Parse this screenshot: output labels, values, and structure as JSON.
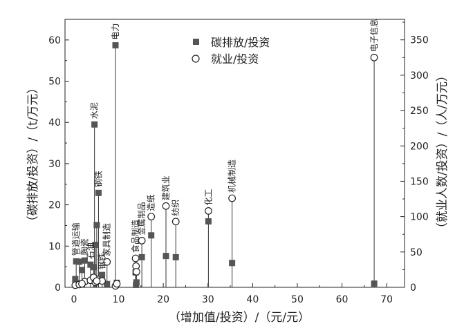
{
  "chart_data": {
    "type": "scatter",
    "xlabel": "（增加值/投资）/（元/元）",
    "ylabel_left": "（碳排放/投资）/（t/万元）",
    "ylabel_right": "（就业人数/投资）/（人/万元）",
    "xlim": [
      -2,
      74
    ],
    "ylim_left": [
      0,
      65
    ],
    "ylim_right": [
      0,
      379
    ],
    "x_ticks": [
      0,
      10,
      20,
      30,
      40,
      50,
      60,
      70
    ],
    "y_left_ticks": [
      0,
      10,
      20,
      30,
      40,
      50,
      60
    ],
    "y_right_ticks": [
      0,
      50,
      100,
      150,
      200,
      250,
      300,
      350
    ],
    "legend_position": "top-center",
    "series": [
      {
        "name": "碳排放/投资",
        "marker": "filled-square",
        "axis": "left",
        "color": "#555555"
      },
      {
        "name": "就业/投资",
        "marker": "open-circle",
        "axis": "right",
        "color": "#222222"
      }
    ],
    "sectors": [
      {
        "label": "电力",
        "x": 9.3,
        "carbon": 58.7,
        "jobs": 2
      },
      {
        "label": "水泥",
        "x": 4.6,
        "carbon": 39.5,
        "jobs": 12
      },
      {
        "label": "钢铁",
        "x": 5.5,
        "carbon": 22.9,
        "jobs": 11
      },
      {
        "label": "家具制造",
        "x": 7.4,
        "carbon": 0.8,
        "jobs": 36
      },
      {
        "label": "食品制造",
        "x": 13.8,
        "carbon": 3.6,
        "jobs": 41
      },
      {
        "label": "金属制品",
        "x": 15.2,
        "carbon": 7.3,
        "jobs": 66
      },
      {
        "label": "造纸",
        "x": 17.3,
        "carbon": 12.6,
        "jobs": 100
      },
      {
        "label": "建筑业",
        "x": 20.6,
        "carbon": 7.6,
        "jobs": 115
      },
      {
        "label": "纺织",
        "x": 22.8,
        "carbon": 7.3,
        "jobs": 93
      },
      {
        "label": "化工",
        "x": 30.1,
        "carbon": 16.0,
        "jobs": 108
      },
      {
        "label": "机械制造",
        "x": 35.4,
        "carbon": 5.9,
        "jobs": 126
      },
      {
        "label": "电子信息",
        "x": 67.2,
        "carbon": 0.9,
        "jobs": 325
      },
      {
        "label": "管道运输",
        "x": 0.5,
        "carbon": 6.3,
        "jobs": 6
      },
      {
        "label": "陶瓷",
        "x": 2.4,
        "carbon": 6.5,
        "jobs": 8
      },
      {
        "label": "石油",
        "x": 3.7,
        "carbon": 5.5,
        "jobs": 10
      },
      {
        "label": "钢铁",
        "x": 6.3,
        "carbon": 3.0,
        "jobs": 9
      },
      {
        "label": "",
        "x": 0.3,
        "carbon": 2.0,
        "jobs": 3
      },
      {
        "label": "",
        "x": 1.2,
        "carbon": 6.2,
        "jobs": 4
      },
      {
        "label": "",
        "x": 1.8,
        "carbon": 4.2,
        "jobs": 5
      },
      {
        "label": "",
        "x": 4.4,
        "carbon": 4.9,
        "jobs": 14
      },
      {
        "label": "",
        "x": 4.8,
        "carbon": 10.3,
        "jobs": 7
      },
      {
        "label": "",
        "x": 5.1,
        "carbon": 15.1,
        "jobs": 9
      },
      {
        "label": "",
        "x": 13.9,
        "carbon": 0.6,
        "jobs": 30
      },
      {
        "label": "",
        "x": 14.0,
        "carbon": 1.2,
        "jobs": 22
      },
      {
        "label": "",
        "x": 9.6,
        "carbon": 1.1,
        "jobs": 5
      }
    ]
  }
}
